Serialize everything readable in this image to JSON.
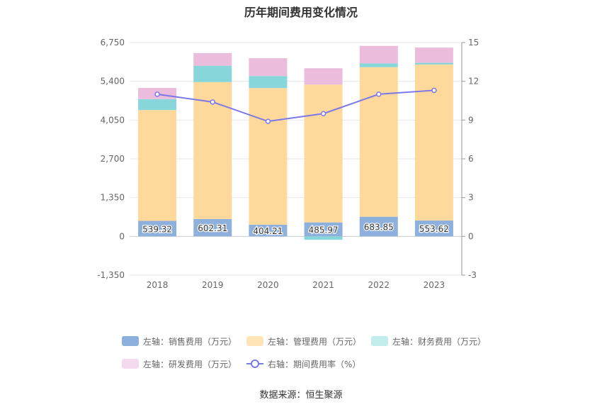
{
  "chart_data": {
    "type": "bar",
    "title": "历年期间费用变化情况",
    "categories": [
      "2018",
      "2019",
      "2020",
      "2021",
      "2022",
      "2023"
    ],
    "stacked": true,
    "series": [
      {
        "name": "左轴：销售费用（万元）",
        "axis": "left",
        "color": "#8eb0dd",
        "values": [
          539.32,
          602.31,
          404.21,
          485.97,
          683.85,
          553.62
        ],
        "labels": [
          "539.32",
          "602.31",
          "404.21",
          "485.97",
          "683.85",
          "553.62"
        ]
      },
      {
        "name": "左轴：管理费用（万元）",
        "axis": "left",
        "color": "#ffd99c",
        "values": [
          3860,
          4770,
          4760,
          4800,
          5210,
          5430
        ]
      },
      {
        "name": "左轴：财务费用（万元）",
        "axis": "left",
        "color": "#86d6da",
        "values": [
          380,
          570,
          420,
          -120,
          130,
          60
        ]
      },
      {
        "name": "左轴：研发费用（万元）",
        "axis": "left",
        "color": "#ebbcdc",
        "values": [
          390,
          440,
          620,
          570,
          610,
          530
        ]
      },
      {
        "name": "右轴：期间费用率（%）",
        "axis": "right",
        "type": "line",
        "color": "#7b79e6",
        "values": [
          11.0,
          10.4,
          8.9,
          9.5,
          11.0,
          11.3
        ]
      }
    ],
    "yleft": {
      "ticks": [
        "-1,350",
        "0",
        "1,350",
        "2,700",
        "4,050",
        "5,400",
        "6,750"
      ],
      "ylim": [
        -1350,
        6750
      ]
    },
    "yright": {
      "ticks": [
        "-3",
        "0",
        "3",
        "6",
        "9",
        "12",
        "15"
      ],
      "ylim": [
        -3,
        15
      ]
    },
    "grid": true,
    "legend_position": "bottom"
  },
  "legend": [
    {
      "label": "左轴：销售费用（万元）",
      "color": "#8eb0dd"
    },
    {
      "label": "左轴：管理费用（万元）",
      "color": "#ffe5b8"
    },
    {
      "label": "左轴：财务费用（万元）",
      "color": "#c3ecec"
    },
    {
      "label": "左轴：研发费用（万元）",
      "color": "#f5d9ec"
    },
    {
      "label": "右轴：期间费用率（%）",
      "color": "#7b79e6"
    }
  ],
  "source": "数据来源：恒生聚源"
}
